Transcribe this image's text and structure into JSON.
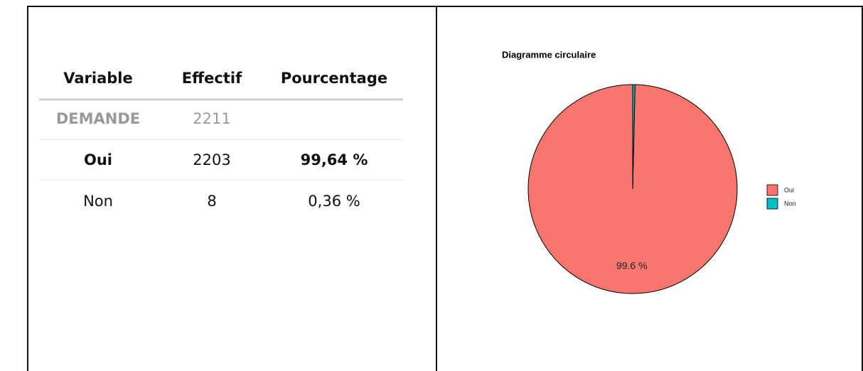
{
  "table": {
    "header": [
      "Variable",
      "Effectif",
      "Pourcentage"
    ],
    "rows": [
      [
        "DEMANDE",
        "2211"
      ],
      [
        "Oui",
        "2203",
        "99,64 %"
      ],
      [
        "Non",
        "8",
        "0,36 %"
      ]
    ]
  },
  "chart_data": {
    "type": "pie",
    "title": "Diagramme circulaire",
    "categories": [
      "Oui",
      "Non"
    ],
    "values": [
      99.64,
      0.36
    ],
    "value_labels": [
      "99.6 %",
      null
    ],
    "colors": [
      "#f8766d",
      "#00bfc4"
    ],
    "legend": "right"
  }
}
